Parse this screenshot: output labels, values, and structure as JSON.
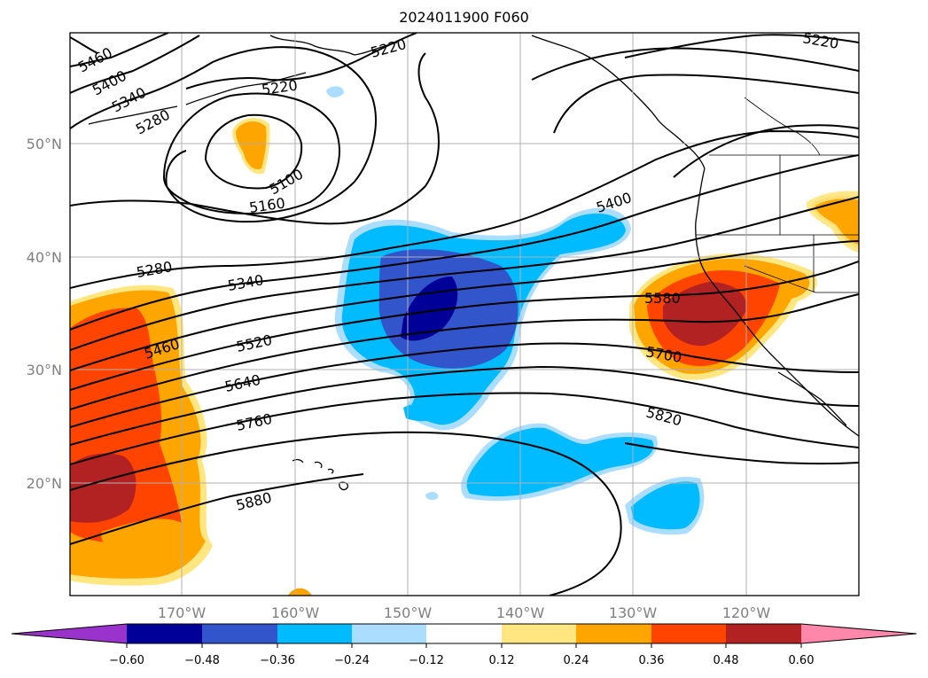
{
  "title": "2024011900 F060",
  "colors": {
    "c_m072": "#9933cc",
    "c_m060": "#000099",
    "c_m048": "#3355cc",
    "c_m036": "#00bbff",
    "c_m024": "#aaddff",
    "c_zero": "#ffffff",
    "c_p012": "#ffe680",
    "c_p024": "#ffa500",
    "c_p036": "#ff4400",
    "c_p048": "#b22222",
    "c_p060": "#ff88aa"
  },
  "lat_labels": [
    "50°N",
    "40°N",
    "30°N",
    "20°N"
  ],
  "lon_labels": [
    "170°W",
    "160°W",
    "150°W",
    "140°W",
    "130°W",
    "120°W"
  ],
  "colorbar": {
    "ticks": [
      "−0.60",
      "−0.48",
      "−0.36",
      "−0.24",
      "−0.12",
      "0.12",
      "0.24",
      "0.36",
      "0.48",
      "0.60"
    ]
  },
  "contour_labels": [
    "5460",
    "5400",
    "5340",
    "5280",
    "5220",
    "5220",
    "5220",
    "5100",
    "5160",
    "5280",
    "5340",
    "5400",
    "5460",
    "5520",
    "5580",
    "5640",
    "5700",
    "5760",
    "5820",
    "5880"
  ]
}
